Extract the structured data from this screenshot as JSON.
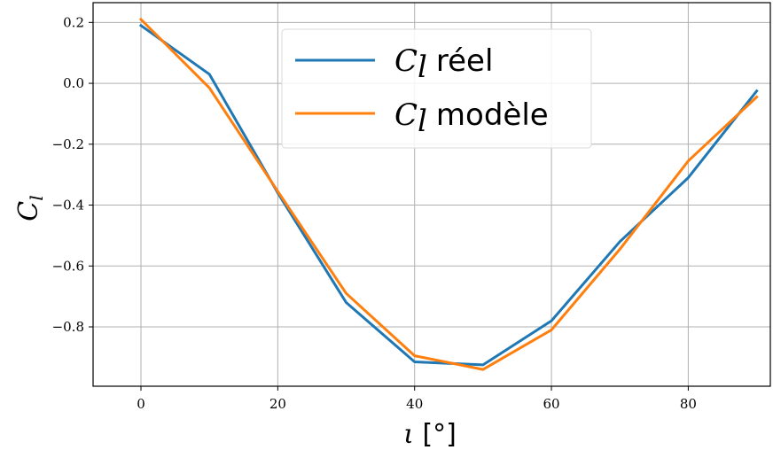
{
  "chart_data": {
    "type": "line",
    "xlabel_symbol": "ι",
    "xlabel_unit": "[°]",
    "ylabel_main": "C",
    "ylabel_sub": "l",
    "xlim": [
      -7,
      92
    ],
    "ylim": [
      -0.995,
      0.265
    ],
    "xticks": [
      0,
      20,
      40,
      60,
      80
    ],
    "yticks": [
      0.2,
      0.0,
      -0.2,
      -0.4,
      -0.6,
      -0.8
    ],
    "xtick_labels": [
      "0",
      "20",
      "40",
      "60",
      "80"
    ],
    "ytick_labels": [
      "0.2",
      "0.0",
      "−0.2",
      "−0.4",
      "−0.6",
      "−0.8"
    ],
    "grid": true,
    "legend_position": "upper-center",
    "series": [
      {
        "symbol": "C",
        "sub": "l",
        "name": "réel",
        "color": "#1f77b4",
        "x": [
          0,
          10,
          20,
          30,
          40,
          50,
          60,
          70,
          80,
          90
        ],
        "y": [
          0.19,
          0.03,
          -0.36,
          -0.72,
          -0.915,
          -0.925,
          -0.78,
          -0.52,
          -0.31,
          -0.025
        ]
      },
      {
        "symbol": "C",
        "sub": "l",
        "name": "modèle",
        "color": "#ff7f0e",
        "x": [
          0,
          10,
          20,
          30,
          40,
          50,
          60,
          70,
          80,
          90
        ],
        "y": [
          0.21,
          -0.015,
          -0.355,
          -0.69,
          -0.895,
          -0.94,
          -0.81,
          -0.545,
          -0.255,
          -0.045
        ]
      }
    ]
  }
}
